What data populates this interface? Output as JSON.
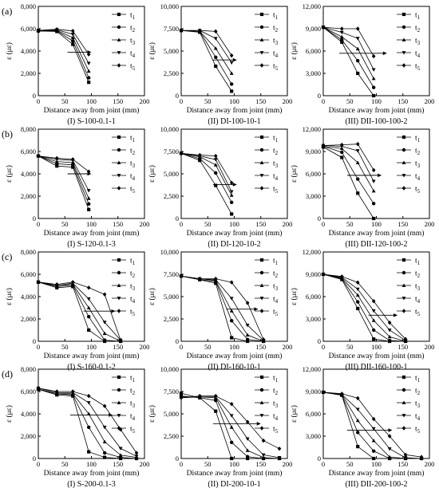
{
  "figure": {
    "row_labels": [
      "(a)",
      "(b)",
      "(c)",
      "(d)"
    ],
    "legend": [
      "t1",
      "t2",
      "t3",
      "t4",
      "t5"
    ],
    "xlabel": "Distance away from joint (mm)",
    "ylabel": "ε (με)"
  },
  "chart_data": [
    {
      "type": "line",
      "caption": "(I) S-100-0.1-1",
      "xlim": [
        0,
        200
      ],
      "ylim": [
        0,
        8000
      ],
      "yticks": [
        0,
        2000,
        4000,
        6000,
        8000
      ],
      "x": [
        0,
        35,
        65,
        95
      ],
      "xlabel": "Distance away from joint (mm)",
      "ylabel": "ε (με)",
      "series": [
        {
          "name": "t1",
          "values": [
            5800,
            5750,
            4600,
            1200
          ]
        },
        {
          "name": "t2",
          "values": [
            5800,
            5800,
            4900,
            1600
          ]
        },
        {
          "name": "t3",
          "values": [
            5850,
            5850,
            5200,
            2200
          ]
        },
        {
          "name": "t4",
          "values": [
            5850,
            5900,
            5500,
            2900
          ]
        },
        {
          "name": "t5",
          "values": [
            5850,
            5950,
            5800,
            3700
          ]
        }
      ],
      "arrow": {
        "x": [
          55,
          100
        ],
        "y": 3900
      }
    },
    {
      "type": "line",
      "caption": "(II) DI-100-10-1",
      "xlim": [
        0,
        200
      ],
      "ylim": [
        0,
        10000
      ],
      "yticks": [
        0,
        2500,
        5000,
        7500,
        10000
      ],
      "x": [
        0,
        35,
        65,
        95
      ],
      "xlabel": "Distance away from joint (mm)",
      "ylabel": "ε (με)",
      "series": [
        {
          "name": "t1",
          "values": [
            7300,
            7100,
            3300,
            500
          ]
        },
        {
          "name": "t2",
          "values": [
            7300,
            7200,
            4300,
            1300
          ]
        },
        {
          "name": "t3",
          "values": [
            7300,
            7200,
            5300,
            2500
          ]
        },
        {
          "name": "t4",
          "values": [
            7300,
            7300,
            6400,
            3700
          ]
        },
        {
          "name": "t5",
          "values": [
            7300,
            7300,
            7200,
            4500
          ]
        }
      ],
      "arrow": {
        "x": [
          60,
          105
        ],
        "y": 4000
      }
    },
    {
      "type": "line",
      "caption": "(III) DII-100-100-2",
      "xlim": [
        0,
        200
      ],
      "ylim": [
        0,
        12000
      ],
      "yticks": [
        0,
        3000,
        6000,
        9000,
        12000
      ],
      "x": [
        0,
        35,
        65,
        95
      ],
      "xlabel": "Distance away from joint (mm)",
      "ylabel": "ε (με)",
      "series": [
        {
          "name": "t1",
          "values": [
            9200,
            7200,
            3000,
            0
          ]
        },
        {
          "name": "t2",
          "values": [
            9200,
            7500,
            4700,
            1100
          ]
        },
        {
          "name": "t3",
          "values": [
            9200,
            7900,
            6300,
            2300
          ]
        },
        {
          "name": "t4",
          "values": [
            9200,
            8500,
            7700,
            3500
          ]
        },
        {
          "name": "t5",
          "values": [
            9200,
            9000,
            9000,
            5300
          ]
        }
      ],
      "arrow": {
        "x": [
          30,
          120
        ],
        "y": 5700
      }
    },
    {
      "type": "line",
      "caption": "(I) S-120-0.1-3",
      "xlim": [
        0,
        200
      ],
      "ylim": [
        0,
        8000
      ],
      "yticks": [
        0,
        2000,
        4000,
        6000,
        8000
      ],
      "x": [
        0,
        35,
        65,
        95
      ],
      "xlabel": "Distance away from joint (mm)",
      "ylabel": "ε (με)",
      "series": [
        {
          "name": "t1",
          "values": [
            5600,
            4700,
            4600,
            800
          ]
        },
        {
          "name": "t2",
          "values": [
            5600,
            4900,
            4800,
            1300
          ]
        },
        {
          "name": "t3",
          "values": [
            5600,
            5100,
            5000,
            1800
          ]
        },
        {
          "name": "t4",
          "values": [
            5600,
            5300,
            5200,
            2500
          ]
        },
        {
          "name": "t5",
          "values": [
            5600,
            5400,
            5300,
            4200
          ]
        }
      ],
      "arrow": {
        "x": [
          55,
          100
        ],
        "y": 4000
      }
    },
    {
      "type": "line",
      "caption": "(II) DI-120-10-2",
      "xlim": [
        0,
        200
      ],
      "ylim": [
        0,
        10000
      ],
      "yticks": [
        0,
        2500,
        5000,
        7500,
        10000
      ],
      "x": [
        0,
        35,
        65,
        95
      ],
      "xlabel": "Distance away from joint (mm)",
      "ylabel": "ε (με)",
      "series": [
        {
          "name": "t1",
          "values": [
            7300,
            6500,
            3700,
            500
          ]
        },
        {
          "name": "t2",
          "values": [
            7300,
            6700,
            5100,
            1800
          ]
        },
        {
          "name": "t3",
          "values": [
            7300,
            6900,
            6000,
            2600
          ]
        },
        {
          "name": "t4",
          "values": [
            7300,
            7000,
            6600,
            3000
          ]
        },
        {
          "name": "t5",
          "values": [
            7300,
            7100,
            7000,
            4000
          ]
        }
      ],
      "arrow": {
        "x": [
          60,
          105
        ],
        "y": 3800
      }
    },
    {
      "type": "line",
      "caption": "(III) DII-120-100-2",
      "xlim": [
        0,
        200
      ],
      "ylim": [
        0,
        12000
      ],
      "yticks": [
        0,
        3000,
        6000,
        9000,
        12000
      ],
      "x": [
        0,
        35,
        65,
        95
      ],
      "xlabel": "Distance away from joint (mm)",
      "ylabel": "ε (με)",
      "series": [
        {
          "name": "t1",
          "values": [
            9600,
            8200,
            3400,
            0
          ]
        },
        {
          "name": "t2",
          "values": [
            9700,
            8900,
            5300,
            2000
          ]
        },
        {
          "name": "t3",
          "values": [
            9700,
            9400,
            7500,
            3700
          ]
        },
        {
          "name": "t4",
          "values": [
            9800,
            9700,
            9100,
            5000
          ]
        },
        {
          "name": "t5",
          "values": [
            9800,
            9900,
            10000,
            6500
          ]
        }
      ],
      "arrow": {
        "x": [
          45,
          110
        ],
        "y": 5800
      }
    },
    {
      "type": "line",
      "caption": "(I) S-160-0.1-2",
      "xlim": [
        0,
        200
      ],
      "ylim": [
        0,
        8000
      ],
      "yticks": [
        0,
        2000,
        4000,
        6000,
        8000
      ],
      "x": [
        0,
        35,
        65,
        95,
        125,
        155
      ],
      "xlabel": "Distance away from joint (mm)",
      "ylabel": "ε (με)",
      "series": [
        {
          "name": "t1",
          "values": [
            5300,
            4800,
            4900,
            1000,
            0,
            0
          ]
        },
        {
          "name": "t2",
          "values": [
            5300,
            4900,
            5000,
            2200,
            100,
            0
          ]
        },
        {
          "name": "t3",
          "values": [
            5300,
            5000,
            5100,
            3000,
            700,
            0
          ]
        },
        {
          "name": "t4",
          "values": [
            5300,
            5000,
            5200,
            3800,
            1700,
            100
          ]
        },
        {
          "name": "t5",
          "values": [
            5300,
            5100,
            5300,
            4800,
            4200,
            100
          ]
        }
      ],
      "arrow": {
        "x": [
          85,
          145
        ],
        "y": 2700
      }
    },
    {
      "type": "line",
      "caption": "(II) DI-160-10-1",
      "xlim": [
        0,
        200
      ],
      "ylim": [
        0,
        10000
      ],
      "yticks": [
        0,
        2500,
        5000,
        7500,
        10000
      ],
      "x": [
        0,
        35,
        65,
        95,
        125,
        155
      ],
      "xlabel": "Distance away from joint (mm)",
      "ylabel": "ε (με)",
      "series": [
        {
          "name": "t1",
          "values": [
            7300,
            6900,
            6500,
            400,
            0,
            0
          ]
        },
        {
          "name": "t2",
          "values": [
            7300,
            6900,
            6700,
            2300,
            200,
            0
          ]
        },
        {
          "name": "t3",
          "values": [
            7300,
            7000,
            6800,
            3400,
            700,
            0
          ]
        },
        {
          "name": "t4",
          "values": [
            7300,
            7000,
            6900,
            4800,
            1800,
            100
          ]
        },
        {
          "name": "t5",
          "values": [
            7300,
            7000,
            7000,
            6600,
            4300,
            200
          ]
        }
      ],
      "arrow": {
        "x": [
          85,
          145
        ],
        "y": 3600
      }
    },
    {
      "type": "line",
      "caption": "(III) DII-160-100-1",
      "xlim": [
        0,
        200
      ],
      "ylim": [
        0,
        12000
      ],
      "yticks": [
        0,
        3000,
        6000,
        9000,
        12000
      ],
      "x": [
        0,
        35,
        65,
        95,
        125,
        155
      ],
      "xlabel": "Distance away from joint (mm)",
      "ylabel": "ε (με)",
      "series": [
        {
          "name": "t1",
          "values": [
            9000,
            8300,
            4400,
            300,
            0,
            0
          ]
        },
        {
          "name": "t2",
          "values": [
            9000,
            8400,
            5300,
            1500,
            100,
            0
          ]
        },
        {
          "name": "t3",
          "values": [
            9000,
            8500,
            6200,
            2800,
            600,
            0
          ]
        },
        {
          "name": "t4",
          "values": [
            9000,
            8600,
            7000,
            4100,
            1500,
            100
          ]
        },
        {
          "name": "t5",
          "values": [
            9000,
            8700,
            7900,
            5400,
            2500,
            300
          ]
        }
      ],
      "arrow": {
        "x": [
          85,
          140
        ],
        "y": 3500
      }
    },
    {
      "type": "line",
      "caption": "(I) S-200-0.1-3",
      "xlim": [
        0,
        200
      ],
      "ylim": [
        0,
        8000
      ],
      "yticks": [
        0,
        2000,
        4000,
        6000,
        8000
      ],
      "x": [
        0,
        35,
        65,
        95,
        125,
        155,
        185
      ],
      "xlabel": "Distance away from joint (mm)",
      "ylabel": "ε (με)",
      "series": [
        {
          "name": "t1",
          "values": [
            6200,
            5700,
            5600,
            600,
            100,
            0,
            0
          ]
        },
        {
          "name": "t2",
          "values": [
            6200,
            5800,
            5700,
            2800,
            500,
            100,
            0
          ]
        },
        {
          "name": "t3",
          "values": [
            6200,
            5800,
            5800,
            4000,
            1500,
            300,
            100
          ]
        },
        {
          "name": "t4",
          "values": [
            6300,
            5900,
            5900,
            5000,
            2800,
            900,
            200
          ]
        },
        {
          "name": "t5",
          "values": [
            6300,
            6000,
            6000,
            5600,
            4700,
            2600,
            500
          ]
        }
      ],
      "arrow": {
        "x": [
          60,
          140
        ],
        "y": 3900
      }
    },
    {
      "type": "line",
      "caption": "(II) DI-200-10-1",
      "xlim": [
        0,
        200
      ],
      "ylim": [
        0,
        10000
      ],
      "yticks": [
        0,
        2500,
        5000,
        7500,
        10000
      ],
      "x": [
        0,
        35,
        65,
        95,
        125,
        155,
        185
      ],
      "xlabel": "Distance away from joint (mm)",
      "ylabel": "ε (με)",
      "series": [
        {
          "name": "t1",
          "values": [
            7300,
            6800,
            5300,
            0,
            0,
            0,
            0
          ]
        },
        {
          "name": "t2",
          "values": [
            7000,
            6800,
            6500,
            1800,
            200,
            0,
            0
          ]
        },
        {
          "name": "t3",
          "values": [
            6900,
            6900,
            6800,
            3500,
            900,
            100,
            0
          ]
        },
        {
          "name": "t4",
          "values": [
            6800,
            6900,
            6900,
            4800,
            2200,
            400,
            100
          ]
        },
        {
          "name": "t5",
          "values": [
            6800,
            7000,
            7000,
            6100,
            4100,
            2000,
            1100
          ]
        }
      ],
      "arrow": {
        "x": [
          60,
          150
        ],
        "y": 3900
      }
    },
    {
      "type": "line",
      "caption": "(III) DII-200-100-2",
      "xlim": [
        0,
        200
      ],
      "ylim": [
        0,
        12000
      ],
      "yticks": [
        0,
        3000,
        6000,
        9000,
        12000
      ],
      "x": [
        0,
        35,
        65,
        95,
        125,
        155,
        185
      ],
      "xlabel": "Distance away from joint (mm)",
      "ylabel": "ε (με)",
      "series": [
        {
          "name": "t1",
          "values": [
            8900,
            8500,
            1600,
            0,
            0,
            0,
            0
          ]
        },
        {
          "name": "t2",
          "values": [
            8900,
            8500,
            3500,
            1000,
            0,
            0,
            0
          ]
        },
        {
          "name": "t3",
          "values": [
            8900,
            8600,
            5100,
            2400,
            200,
            0,
            0
          ]
        },
        {
          "name": "t4",
          "values": [
            8900,
            8600,
            6600,
            4000,
            1300,
            100,
            0
          ]
        },
        {
          "name": "t5",
          "values": [
            8900,
            8700,
            8100,
            5300,
            3000,
            500,
            200
          ]
        }
      ],
      "arrow": {
        "x": [
          45,
          130
        ],
        "y": 3800
      }
    }
  ]
}
